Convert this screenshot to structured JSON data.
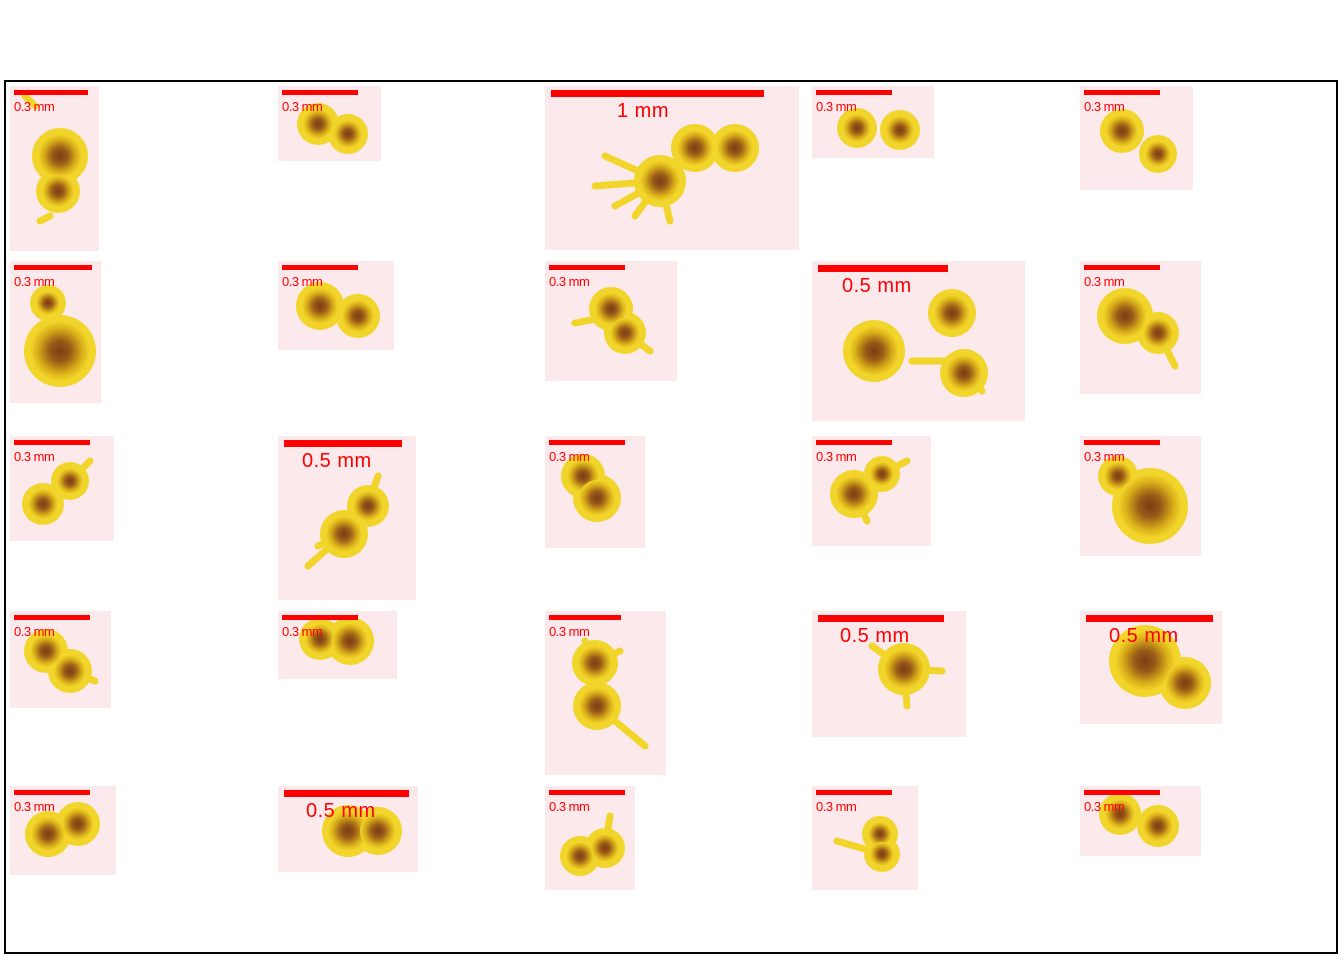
{
  "colors": {
    "tile_bg": "#fbe9ec",
    "blob_outer": "#f2d52a",
    "blob_inner": "#d9b019",
    "core": "#7a3d12",
    "scalebar": "#ff0000"
  },
  "tiles": [
    {
      "label": "0.3 mm"
    },
    {
      "label": "0.3 mm"
    },
    {
      "label": "1 mm"
    },
    {
      "label": "0.3 mm"
    },
    {
      "label": "0.3 mm"
    },
    {
      "label": "0.3 mm"
    },
    {
      "label": "0.3 mm"
    },
    {
      "label": "0.3 mm"
    },
    {
      "label": "0.5 mm"
    },
    {
      "label": "0.3 mm"
    },
    {
      "label": "0.3 mm"
    },
    {
      "label": "0.5 mm"
    },
    {
      "label": "0.3 mm"
    },
    {
      "label": "0.3 mm"
    },
    {
      "label": "0.3 mm"
    },
    {
      "label": "0.3 mm"
    },
    {
      "label": "0.3 mm"
    },
    {
      "label": "0.3 mm"
    },
    {
      "label": "0.5 mm"
    },
    {
      "label": "0.5 mm"
    },
    {
      "label": "0.3 mm"
    },
    {
      "label": "0.5 mm"
    },
    {
      "label": "0.3 mm"
    },
    {
      "label": "0.3 mm"
    },
    {
      "label": "0.3 mm"
    }
  ]
}
